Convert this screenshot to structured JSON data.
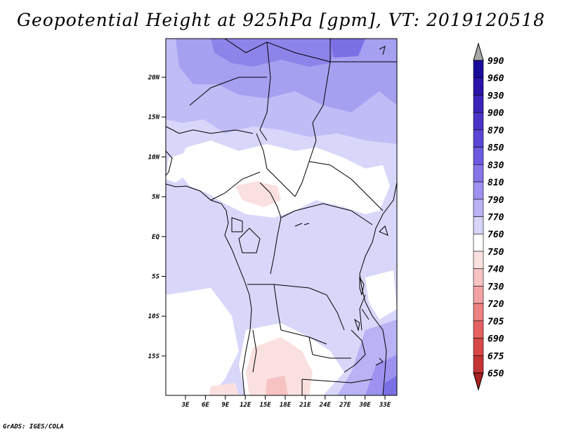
{
  "map": {
    "title": "Geopotential Height at 925hPa [gpm], VT: 2019120518",
    "credit": "GrADS: IGES/COLA",
    "lon_labels": [
      "3E",
      "6E",
      "9E",
      "12E",
      "15E",
      "18E",
      "21E",
      "24E",
      "27E",
      "30E",
      "33E"
    ],
    "lat_labels": [
      "20N",
      "15N",
      "10N",
      "5N",
      "EQ",
      "5S",
      "10S",
      "15S"
    ],
    "colorbar": {
      "levels": [
        "990",
        "960",
        "930",
        "900",
        "870",
        "850",
        "830",
        "810",
        "790",
        "770",
        "760",
        "750",
        "740",
        "730",
        "720",
        "705",
        "690",
        "675",
        "650"
      ],
      "colors": [
        "#1a0c9a",
        "#2a14ab",
        "#3a24bb",
        "#4a34c8",
        "#5a46d6",
        "#6b5ae0",
        "#8575e8",
        "#9d92ef",
        "#b9b2f4",
        "#d6d4f8",
        "#ffffff",
        "#fbe0e0",
        "#f7c2c2",
        "#f2a2a2",
        "#ec8282",
        "#e66262",
        "#d84848",
        "#c53434",
        "#a81f1f"
      ],
      "over_color": "#a8a8a8",
      "under_color": "#a81f1f"
    }
  }
}
